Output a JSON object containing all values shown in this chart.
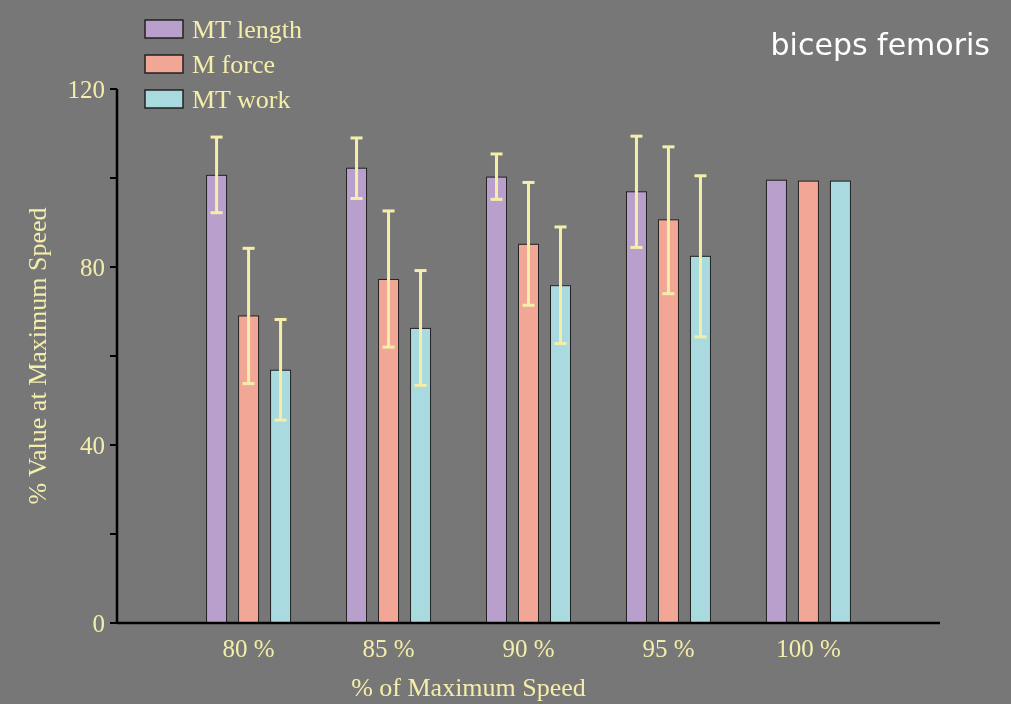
{
  "chart_data": {
    "type": "bar",
    "xlabel": "% of Maximum Speed",
    "ylabel": "% Value at Maximum Speed",
    "annotations": [
      "biceps femoris"
    ],
    "categories": [
      "80 %",
      "85 %",
      "90 %",
      "95 %",
      "100 %"
    ],
    "series": [
      {
        "name": "MT length",
        "color": "#b9a0cc",
        "values": [
          100.6,
          102.2,
          100.2,
          96.9,
          99.5
        ],
        "errors": [
          [
            92.2,
            109.2
          ],
          [
            95.4,
            109.0
          ],
          [
            95.2,
            105.4
          ],
          [
            84.4,
            109.4
          ],
          null
        ]
      },
      {
        "name": "M force",
        "color": "#f2a796",
        "values": [
          69.0,
          77.2,
          85.1,
          90.6,
          99.3
        ],
        "errors": [
          [
            53.8,
            84.2
          ],
          [
            62.0,
            92.6
          ],
          [
            71.4,
            99.0
          ],
          [
            74.0,
            107.0
          ],
          null
        ]
      },
      {
        "name": "MT work",
        "color": "#a8dadf",
        "values": [
          56.8,
          66.2,
          75.8,
          82.4,
          99.3
        ],
        "errors": [
          [
            45.6,
            68.2
          ],
          [
            53.4,
            79.2
          ],
          [
            62.8,
            89.0
          ],
          [
            64.3,
            100.5
          ],
          null
        ]
      }
    ],
    "ylim": [
      0,
      120
    ],
    "yticks": [
      0,
      {
        "value": 20,
        "label": null
      },
      40,
      {
        "value": 60,
        "label": null
      },
      80,
      {
        "value": 100,
        "label": null
      },
      120
    ],
    "legend": "top left",
    "grid": false
  }
}
